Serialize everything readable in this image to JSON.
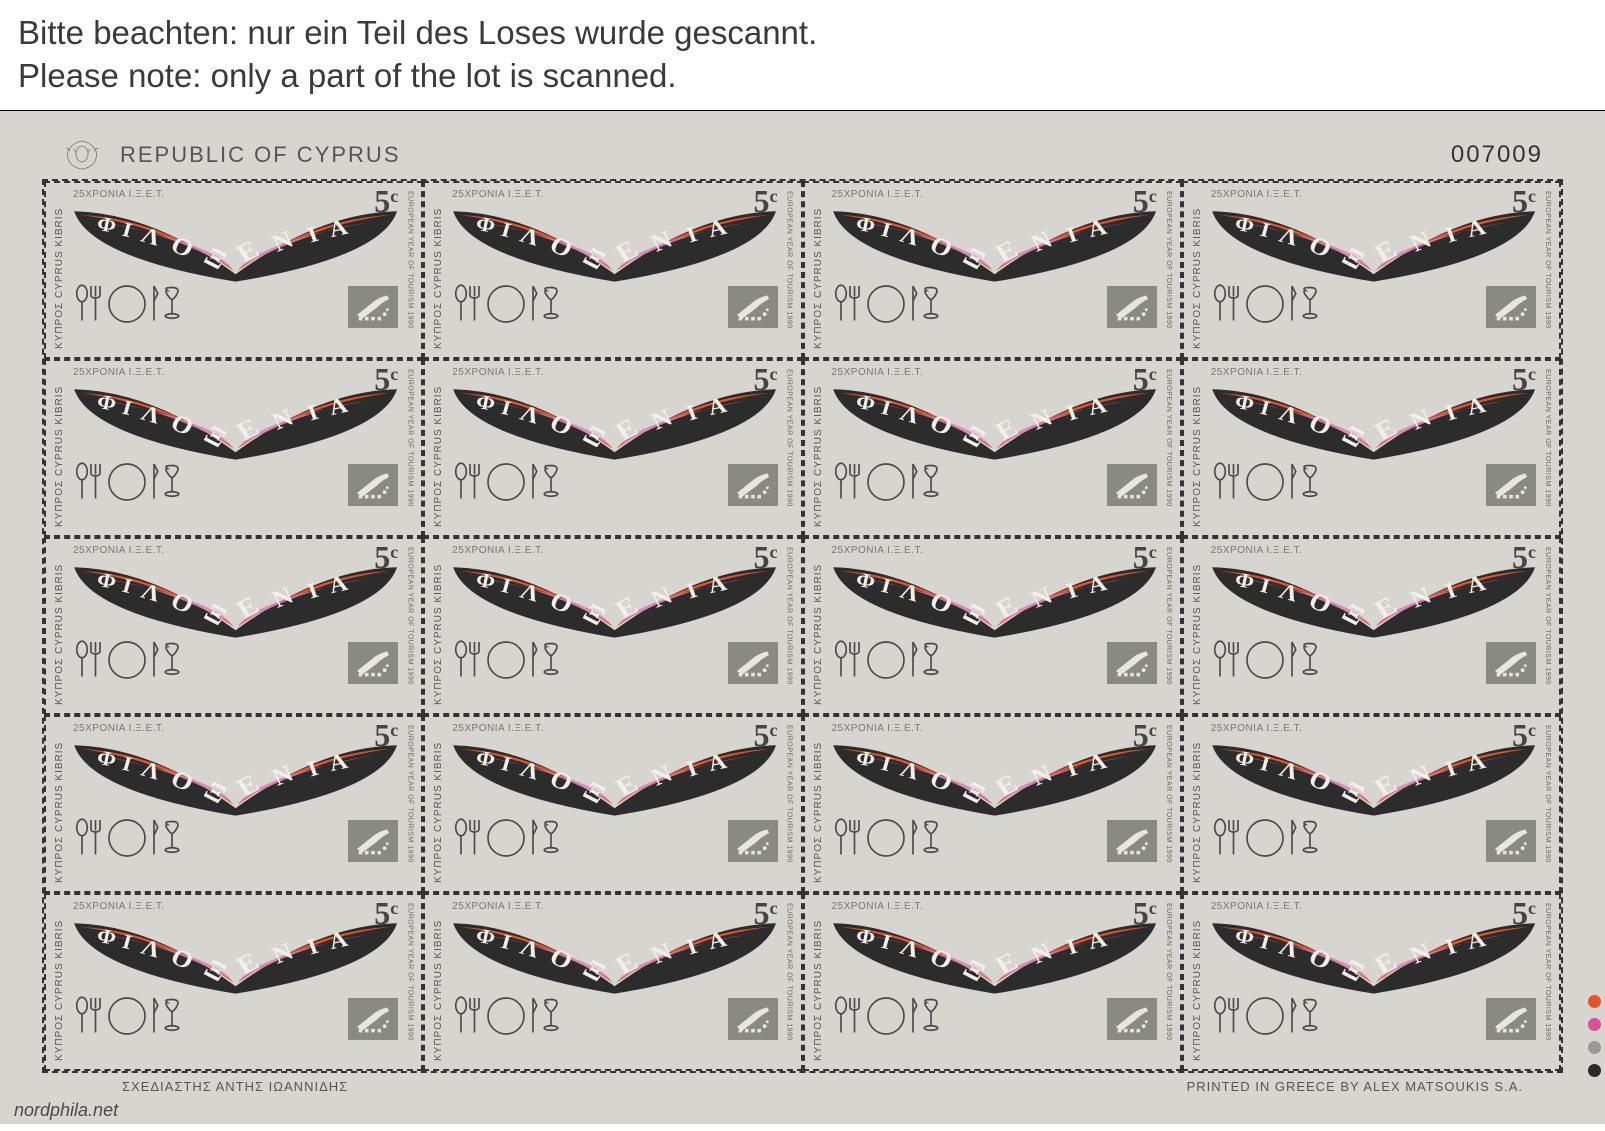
{
  "notice": {
    "line1": "Bitte beachten: nur ein Teil des Loses wurde gescannt.",
    "line2": "Please note: only a part of the lot is scanned."
  },
  "sheet": {
    "country": "REPUBLIC OF CYPRUS",
    "serial": "007009",
    "designer_left": "ΣΧΕΔΙΑΣΤΗΣ  ΑΝΤΗΣ  ΙΩΑΝΝΙΔΗΣ",
    "printer_right": "PRINTED IN GREECE BY ALEX MATSOUKIS S.A.",
    "rows": 5,
    "cols": 4
  },
  "stamp": {
    "left_side": "ΚΥΠΡΟΣ CYPRUS KIBRIS",
    "right_side": "EUROPEAN YEAR OF TOURISM 1990",
    "top_small": "25ΧΡΟΝΙΑ  Ι.Ξ.Ε.Τ.",
    "denom_num": "5",
    "denom_unit": "c",
    "word_in_wings": "ΦΙΛΟΞΕΝΙΑ"
  },
  "colors": {
    "sheet_bg": "#d6d5d0",
    "wing_left": "#2c2c2c",
    "wing_right": "#2c2c2c",
    "fill_orange": "#e4532b",
    "fill_pink": "#da7fb5",
    "letters": "#f4efe8",
    "tableware_stroke": "#4a4a4a",
    "emblem_bg": "#8a8a85",
    "emblem_fg": "#e8e6de",
    "denom_color": "#454545",
    "dots": [
      "#e4532b",
      "#da4f96",
      "#9a9a95",
      "#2a2a2a"
    ]
  },
  "watermark": "nordphila.net"
}
